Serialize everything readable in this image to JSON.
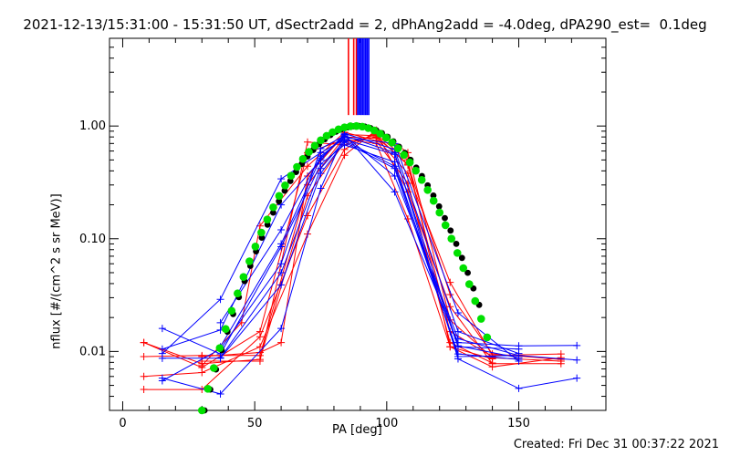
{
  "title": "2021-12-13/15:31:00 - 15:31:50 UT, dSectr2add = 2, dPhAng2add = -4.0deg, dPA290_est=  0.1deg",
  "created": "Created: Fri Dec 31 00:37:22 2021",
  "chart_data": {
    "type": "line",
    "title": "2021-12-13/15:31:00 - 15:31:50 UT, dSectr2add = 2, dPhAng2add = -4.0deg, dPA290_est=  0.1deg",
    "xlabel": "PA [deg]",
    "ylabel": "nflux [#/(cm^2 s sr MeV)]",
    "xlim": [
      -5,
      183
    ],
    "ylim": [
      0.003,
      6.0
    ],
    "yscale": "log",
    "xticks": [
      0,
      50,
      100,
      150
    ],
    "xtick_labels": [
      "0",
      "50",
      "100",
      "150"
    ],
    "yticks": [
      0.01,
      0.1,
      1.0
    ],
    "ytick_labels": [
      "0.01",
      "0.10",
      "1.00"
    ],
    "grid": false,
    "vertical_markers": [
      {
        "color": "#ff0000",
        "x": [
          85.5,
          87.5,
          88.5
        ]
      },
      {
        "color": "#0000ff",
        "x": [
          89.0,
          89.6,
          90.2,
          90.8,
          91.4,
          92.0,
          92.6,
          93.2
        ]
      }
    ],
    "series": [
      {
        "color": "#ff0000",
        "x": [
          8,
          30,
          52,
          70,
          84,
          96,
          108,
          124,
          140,
          166
        ],
        "y": [
          0.012,
          0.0078,
          0.0085,
          0.24,
          0.72,
          0.8,
          0.46,
          0.032,
          0.0095,
          0.0085
        ]
      },
      {
        "color": "#ff0000",
        "x": [
          8,
          30,
          52,
          70,
          84,
          96,
          108,
          124,
          140,
          166
        ],
        "y": [
          0.0046,
          0.0046,
          0.0135,
          0.16,
          0.62,
          0.88,
          0.26,
          0.025,
          0.0078,
          0.0078
        ]
      },
      {
        "color": "#ff0000",
        "x": [
          8,
          30,
          52,
          70,
          84,
          96,
          108,
          124,
          140,
          166
        ],
        "y": [
          0.009,
          0.0092,
          0.0092,
          0.3,
          0.8,
          0.78,
          0.38,
          0.041,
          0.0092,
          0.0095
        ]
      },
      {
        "color": "#ff0000",
        "x": [
          8,
          30,
          52,
          70,
          84,
          96,
          108,
          124,
          140,
          166
        ],
        "y": [
          0.006,
          0.0065,
          0.011,
          0.11,
          0.55,
          0.92,
          0.58,
          0.019,
          0.0088,
          0.0082
        ]
      },
      {
        "color": "#ff0000",
        "x": [
          8,
          30,
          52,
          70,
          84,
          96,
          108,
          124,
          140,
          166
        ],
        "y": [
          0.012,
          0.0072,
          0.015,
          0.58,
          0.76,
          0.7,
          0.15,
          0.011,
          0.0073,
          0.0088
        ]
      },
      {
        "color": "#ff0000",
        "x": [
          30,
          52,
          70,
          84,
          96,
          108,
          124,
          140
        ],
        "y": [
          0.0082,
          0.0082,
          0.72,
          0.68,
          0.84,
          0.5,
          0.011,
          0.0086
        ]
      },
      {
        "color": "#ff0000",
        "x": [
          30,
          45,
          52,
          70,
          84,
          96,
          108,
          124,
          140
        ],
        "y": [
          0.0075,
          0.018,
          0.13,
          0.44,
          0.88,
          0.74,
          0.31,
          0.012,
          0.0079
        ]
      },
      {
        "color": "#ff0000",
        "x": [
          30,
          52,
          60,
          70,
          84,
          96,
          108,
          124,
          140
        ],
        "y": [
          0.009,
          0.0098,
          0.012,
          0.36,
          0.84,
          0.82,
          0.45,
          0.015,
          0.009
        ]
      },
      {
        "color": "#0000ff",
        "x": [
          15,
          37,
          60,
          75,
          84,
          103,
          127,
          150,
          172
        ],
        "y": [
          0.0055,
          0.0105,
          0.06,
          0.63,
          0.82,
          0.58,
          0.0086,
          0.0047,
          0.0058
        ]
      },
      {
        "color": "#0000ff",
        "x": [
          15,
          37,
          60,
          75,
          84,
          103,
          127,
          150,
          172
        ],
        "y": [
          0.0058,
          0.0042,
          0.016,
          0.28,
          0.84,
          0.26,
          0.012,
          0.0112,
          0.0113
        ]
      },
      {
        "color": "#0000ff",
        "x": [
          15,
          37,
          60,
          75,
          84,
          103,
          127,
          150,
          172
        ],
        "y": [
          0.016,
          0.0095,
          0.085,
          0.46,
          0.68,
          0.48,
          0.009,
          0.0092,
          0.0084
        ]
      },
      {
        "color": "#0000ff",
        "x": [
          15,
          37,
          60,
          75,
          84,
          103,
          127,
          150
        ],
        "y": [
          0.0096,
          0.029,
          0.34,
          0.58,
          0.76,
          0.56,
          0.0112,
          0.0088
        ]
      },
      {
        "color": "#0000ff",
        "x": [
          15,
          37,
          60,
          75,
          84,
          103,
          127,
          150
        ],
        "y": [
          0.0105,
          0.0155,
          0.2,
          0.5,
          0.86,
          0.62,
          0.015,
          0.0096
        ]
      },
      {
        "color": "#0000ff",
        "x": [
          15,
          37,
          60,
          75,
          84,
          103,
          127,
          150
        ],
        "y": [
          0.0087,
          0.0087,
          0.039,
          0.38,
          0.72,
          0.42,
          0.0095,
          0.0085
        ]
      },
      {
        "color": "#0000ff",
        "x": [
          37,
          60,
          75,
          84,
          103,
          127,
          150
        ],
        "y": [
          0.018,
          0.12,
          0.54,
          0.79,
          0.7,
          0.022,
          0.0082
        ]
      },
      {
        "color": "#0000ff",
        "x": [
          37,
          60,
          75,
          84,
          103,
          127,
          150
        ],
        "y": [
          0.0088,
          0.05,
          0.42,
          0.74,
          0.44,
          0.011,
          0.0105
        ]
      },
      {
        "color": "#0000ff",
        "x": [
          37,
          60,
          75,
          84,
          103,
          127,
          150
        ],
        "y": [
          0.011,
          0.09,
          0.52,
          0.82,
          0.36,
          0.013,
          0.0092
        ]
      }
    ],
    "fit_curves": [
      {
        "color": "#000000",
        "style": "dots",
        "x_range": [
          31,
          135
        ],
        "center": 89,
        "peak": 1.0
      },
      {
        "color": "#00e000",
        "style": "dots",
        "x_range": [
          30,
          138
        ],
        "center": 88,
        "peak": 1.0
      }
    ]
  },
  "labels": {
    "xlabel": "PA [deg]",
    "ylabel": "nflux [#/(cm^2 s sr MeV)]"
  }
}
